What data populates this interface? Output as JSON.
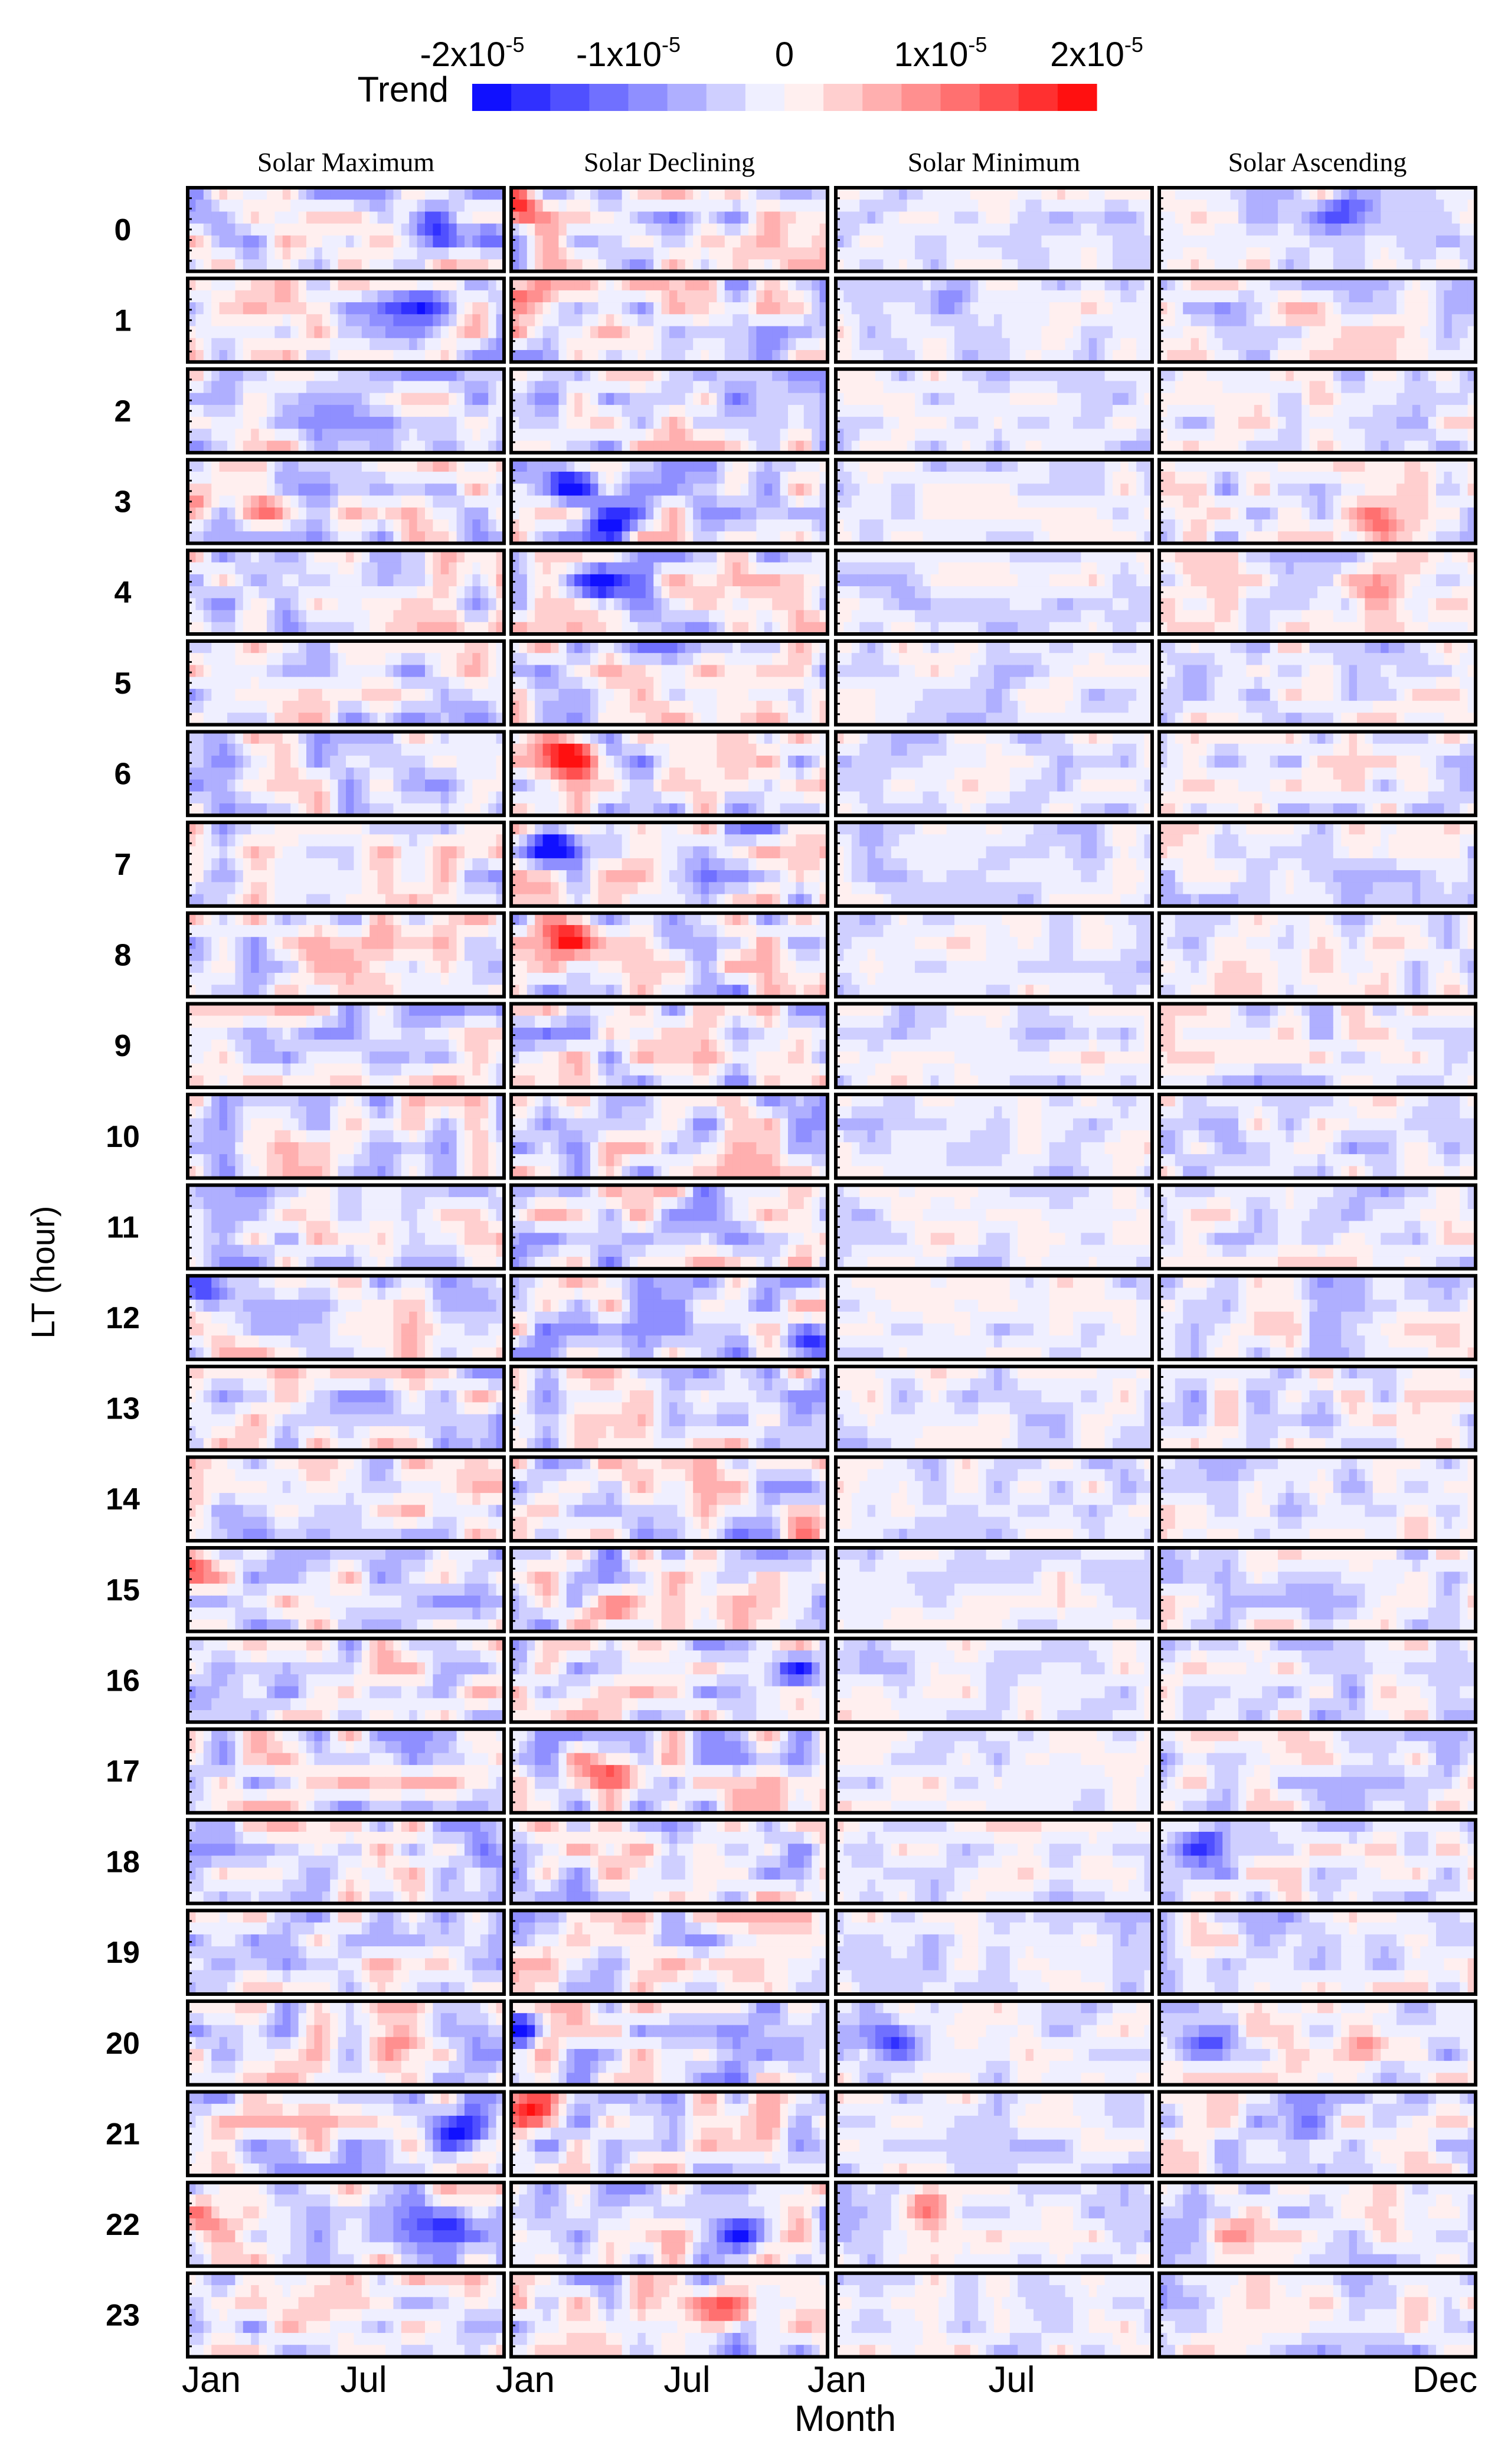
{
  "chart_data": {
    "type": "heatmap",
    "title": "",
    "xlabel": "Month",
    "ylabel": "LT (hour)",
    "colorbar": {
      "label": "Trend",
      "tick_values": [
        -2e-05,
        -1e-05,
        0,
        1e-05,
        2e-05
      ],
      "tick_labels": [
        {
          "base": "-2x10",
          "exp": "-5"
        },
        {
          "base": "-1x10",
          "exp": "-5"
        },
        {
          "base": "0",
          "exp": ""
        },
        {
          "base": "1x10",
          "exp": "-5"
        },
        {
          "base": "2x10",
          "exp": "-5"
        }
      ],
      "range": [
        -2e-05,
        2e-05
      ],
      "levels": 16,
      "low_color": "#0000ff",
      "mid_color": "#ffffff",
      "high_color": "#ff0000"
    },
    "panels": [
      "Solar Maximum",
      "Solar Declining",
      "Solar Minimum",
      "Solar Ascending"
    ],
    "rows": [
      "0",
      "1",
      "2",
      "3",
      "4",
      "5",
      "6",
      "7",
      "8",
      "9",
      "10",
      "11",
      "12",
      "13",
      "14",
      "15",
      "16",
      "17",
      "18",
      "19",
      "20",
      "21",
      "22",
      "23"
    ],
    "x_tick_labels": [
      "Jan",
      "Jul",
      "Jan",
      "Jul",
      "Jan",
      "Jul",
      "Dec"
    ],
    "background_trend": -1.5e-06,
    "panel_noise_scale": [
      0.9,
      1.0,
      0.5,
      0.7
    ],
    "features": [
      {
        "panel": 0,
        "row": 0,
        "month": 9.5,
        "band": 0.4,
        "value": -1.8e-05
      },
      {
        "panel": 0,
        "row": 0,
        "month": 11.5,
        "band": 0.6,
        "value": -1.6e-05
      },
      {
        "panel": 0,
        "row": 1,
        "month": 9.0,
        "band": 0.3,
        "value": -1.5e-05
      },
      {
        "panel": 0,
        "row": 3,
        "month": 1.0,
        "band": 0.5,
        "value": 1.3e-05
      },
      {
        "panel": 0,
        "row": 3,
        "month": 4.0,
        "band": 0.6,
        "value": 1.1e-05
      },
      {
        "panel": 0,
        "row": 12,
        "month": 1.5,
        "band": 0.2,
        "value": -1.6e-05
      },
      {
        "panel": 0,
        "row": 15,
        "month": 1.0,
        "band": 0.2,
        "value": 1.4e-05
      },
      {
        "panel": 0,
        "row": 18,
        "month": 11.5,
        "band": 0.4,
        "value": -1.3e-05
      },
      {
        "panel": 0,
        "row": 20,
        "month": 8.5,
        "band": 0.5,
        "value": 1.1e-05
      },
      {
        "panel": 0,
        "row": 21,
        "month": 10.5,
        "band": 0.5,
        "value": -1.4e-05
      },
      {
        "panel": 0,
        "row": 22,
        "month": 2.0,
        "band": 0.4,
        "value": 1.2e-05
      },
      {
        "panel": 0,
        "row": 22,
        "month": 10.0,
        "band": 0.5,
        "value": -1.5e-05
      },
      {
        "panel": 1,
        "row": 0,
        "month": 1.2,
        "band": 0.2,
        "value": 1.7e-05
      },
      {
        "panel": 1,
        "row": 1,
        "month": 1.2,
        "band": 0.2,
        "value": 1.4e-05
      },
      {
        "panel": 1,
        "row": 3,
        "month": 4.5,
        "band": 0.7,
        "value": -1.8e-05
      },
      {
        "panel": 1,
        "row": 3,
        "month": 3.0,
        "band": 0.3,
        "value": -1.5e-05
      },
      {
        "panel": 1,
        "row": 4,
        "month": 4.0,
        "band": 0.4,
        "value": -1.6e-05
      },
      {
        "panel": 1,
        "row": 6,
        "month": 3.0,
        "band": 0.3,
        "value": 1.8e-05
      },
      {
        "panel": 1,
        "row": 7,
        "month": 2.5,
        "band": 0.3,
        "value": -2e-05
      },
      {
        "panel": 1,
        "row": 8,
        "month": 3.0,
        "band": 0.3,
        "value": 1.6e-05
      },
      {
        "panel": 1,
        "row": 12,
        "month": 11.5,
        "band": 0.8,
        "value": -1.7e-05
      },
      {
        "panel": 1,
        "row": 14,
        "month": 11.5,
        "band": 0.9,
        "value": 1.2e-05
      },
      {
        "panel": 1,
        "row": 15,
        "month": 4.5,
        "band": 0.7,
        "value": 1.7e-05
      },
      {
        "panel": 1,
        "row": 16,
        "month": 11.0,
        "band": 0.4,
        "value": -1.5e-05
      },
      {
        "panel": 1,
        "row": 17,
        "month": 4.5,
        "band": 0.5,
        "value": 1.8e-05
      },
      {
        "panel": 1,
        "row": 20,
        "month": 1.3,
        "band": 0.3,
        "value": -1.7e-05
      },
      {
        "panel": 1,
        "row": 21,
        "month": 1.5,
        "band": 0.2,
        "value": 1.5e-05
      },
      {
        "panel": 1,
        "row": 22,
        "month": 9.0,
        "band": 0.6,
        "value": -1.6e-05
      },
      {
        "panel": 1,
        "row": 23,
        "month": 8.5,
        "band": 0.5,
        "value": 1.3e-05
      },
      {
        "panel": 2,
        "row": 1,
        "month": 5.0,
        "band": 0.3,
        "value": -1e-05
      },
      {
        "panel": 2,
        "row": 20,
        "month": 3.0,
        "band": 0.5,
        "value": -1.3e-05
      },
      {
        "panel": 2,
        "row": 22,
        "month": 4.0,
        "band": 0.3,
        "value": 1.1e-05
      },
      {
        "panel": 3,
        "row": 0,
        "month": 7.5,
        "band": 0.3,
        "value": -1.2e-05
      },
      {
        "panel": 3,
        "row": 1,
        "month": 5.5,
        "band": 0.4,
        "value": 1e-05
      },
      {
        "panel": 3,
        "row": 3,
        "month": 8.5,
        "band": 0.7,
        "value": 1.2e-05
      },
      {
        "panel": 3,
        "row": 4,
        "month": 8.5,
        "band": 0.6,
        "value": 1.3e-05
      },
      {
        "panel": 3,
        "row": 18,
        "month": 2.5,
        "band": 0.3,
        "value": -1.5e-05
      },
      {
        "panel": 3,
        "row": 20,
        "month": 2.5,
        "band": 0.5,
        "value": -1.5e-05
      },
      {
        "panel": 3,
        "row": 20,
        "month": 8.5,
        "band": 0.5,
        "value": 1.2e-05
      },
      {
        "panel": 3,
        "row": 21,
        "month": 6.0,
        "band": 0.4,
        "value": -1.2e-05
      },
      {
        "panel": 3,
        "row": 22,
        "month": 3.5,
        "band": 0.6,
        "value": 1.1e-05
      }
    ]
  }
}
